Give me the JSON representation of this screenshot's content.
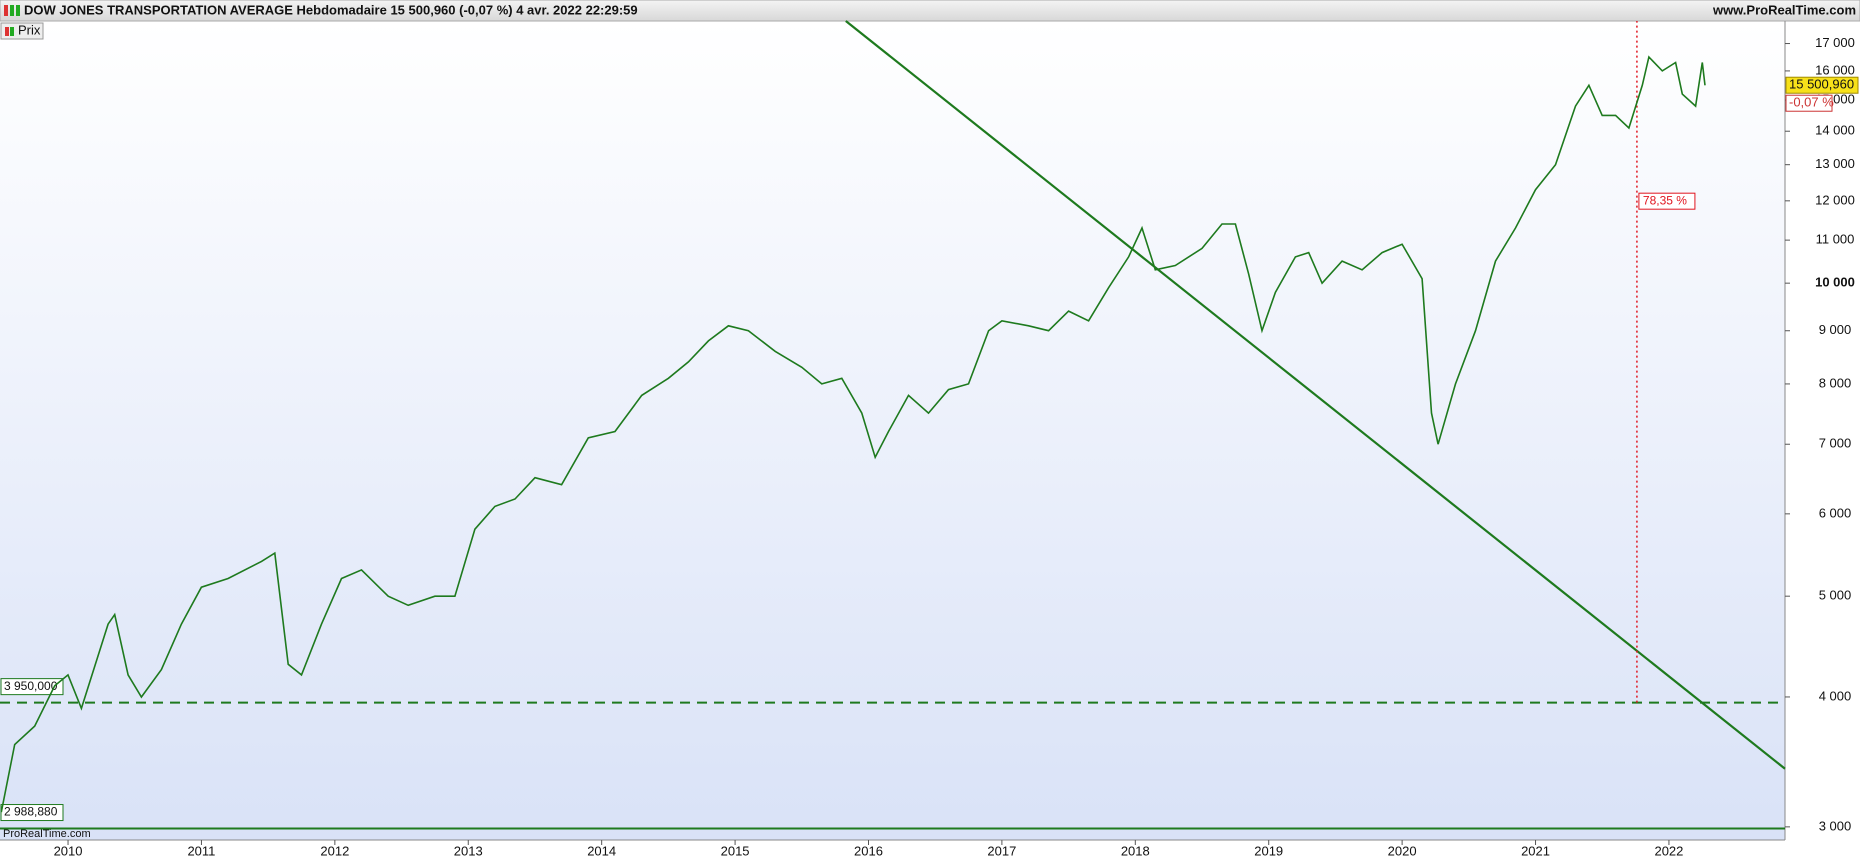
{
  "chart_data": {
    "type": "line",
    "title": "DOW JONES TRANSPORTATION AVERAGE Hebdomadaire 15 500,960 (-0,07 %) 4 avr. 2022 22:29:59",
    "source": "www.ProRealTime.com",
    "watermark": "ProRealTime.com",
    "log_scale": true,
    "xlim": [
      2009.49,
      2022.87
    ],
    "xticks": [
      2010,
      2011,
      2012,
      2013,
      2014,
      2015,
      2016,
      2017,
      2018,
      2019,
      2020,
      2021,
      2022
    ],
    "ylim": [
      2914,
      17870
    ],
    "yticks": [
      {
        "value": 3000,
        "label": "3 000"
      },
      {
        "value": 4000,
        "label": "4 000"
      },
      {
        "value": 5000,
        "label": "5 000"
      },
      {
        "value": 6000,
        "label": "6 000"
      },
      {
        "value": 7000,
        "label": "7 000"
      },
      {
        "value": 8000,
        "label": "8 000"
      },
      {
        "value": 9000,
        "label": "9 000"
      },
      {
        "value": 10000,
        "label": "10 000"
      },
      {
        "value": 11000,
        "label": "11 000"
      },
      {
        "value": 12000,
        "label": "12 000"
      },
      {
        "value": 13000,
        "label": "13 000"
      },
      {
        "value": 14000,
        "label": "14 000"
      },
      {
        "value": 15000,
        "label": "15 000"
      },
      {
        "value": 16000,
        "label": "16 000"
      },
      {
        "value": 17000,
        "label": "17 000"
      }
    ],
    "series": [
      {
        "name": "Prix",
        "color": "#1e7a1e",
        "x": [
          2009.5,
          2009.6,
          2009.75,
          2009.9,
          2010.0,
          2010.1,
          2010.3,
          2010.35,
          2010.45,
          2010.55,
          2010.7,
          2010.85,
          2011.0,
          2011.2,
          2011.45,
          2011.55,
          2011.65,
          2011.75,
          2011.9,
          2012.05,
          2012.2,
          2012.4,
          2012.55,
          2012.75,
          2012.9,
          2013.05,
          2013.2,
          2013.35,
          2013.5,
          2013.7,
          2013.9,
          2014.1,
          2014.3,
          2014.5,
          2014.65,
          2014.8,
          2014.95,
          2015.1,
          2015.3,
          2015.5,
          2015.65,
          2015.8,
          2015.95,
          2016.05,
          2016.15,
          2016.3,
          2016.45,
          2016.6,
          2016.75,
          2016.9,
          2017.0,
          2017.2,
          2017.35,
          2017.5,
          2017.65,
          2017.8,
          2017.95,
          2018.05,
          2018.15,
          2018.3,
          2018.5,
          2018.65,
          2018.75,
          2018.85,
          2018.95,
          2019.05,
          2019.2,
          2019.3,
          2019.4,
          2019.55,
          2019.7,
          2019.85,
          2020.0,
          2020.15,
          2020.22,
          2020.27,
          2020.4,
          2020.55,
          2020.7,
          2020.85,
          2021.0,
          2021.15,
          2021.3,
          2021.4,
          2021.5,
          2021.6,
          2021.7,
          2021.8,
          2021.85,
          2021.95,
          2022.05,
          2022.1,
          2022.2,
          2022.25,
          2022.27
        ],
        "values": [
          3100,
          3600,
          3750,
          4100,
          4200,
          3900,
          4700,
          4800,
          4200,
          4000,
          4250,
          4700,
          5100,
          5200,
          5400,
          5500,
          4300,
          4200,
          4700,
          5200,
          5300,
          5000,
          4900,
          5000,
          5000,
          5800,
          6100,
          6200,
          6500,
          6400,
          7100,
          7200,
          7800,
          8100,
          8400,
          8800,
          9100,
          9000,
          8600,
          8300,
          8000,
          8100,
          7500,
          6800,
          7200,
          7800,
          7500,
          7900,
          8000,
          9000,
          9200,
          9100,
          9000,
          9400,
          9200,
          9900,
          10600,
          11300,
          10300,
          10400,
          10800,
          11400,
          11400,
          10200,
          9000,
          9800,
          10600,
          10700,
          10000,
          10500,
          10300,
          10700,
          10900,
          10100,
          7500,
          7000,
          8000,
          9000,
          10500,
          11300,
          12300,
          13000,
          14800,
          15500,
          14500,
          14500,
          14100,
          15500,
          16500,
          16000,
          16300,
          15200,
          14800,
          16300,
          15500
        ]
      }
    ],
    "last_price": {
      "value": 15500.96,
      "label": "15 500,960"
    },
    "change_label": "-0,07 %",
    "levels": [
      {
        "value": 3950,
        "label": "3 950,000",
        "dashed": true
      },
      {
        "value": 2988.88,
        "label": "2 988,880",
        "dashed": false
      }
    ],
    "trendline": {
      "x": [
        2015.83,
        2022.87
      ],
      "y": [
        17870,
        3412
      ],
      "color": "#1e7a1e"
    },
    "measure": {
      "x": 2021.76,
      "from": 3950,
      "label": "78,35 %",
      "color": "#e0141e"
    }
  }
}
